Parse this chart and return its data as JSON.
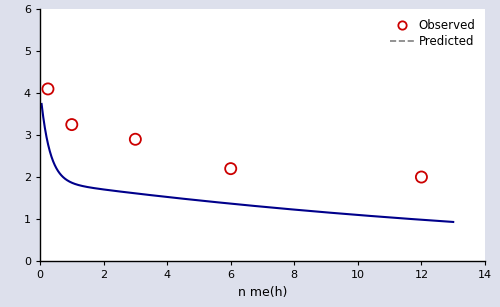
{
  "observed_x": [
    0.25,
    1.0,
    3.0,
    6.0,
    12.0
  ],
  "observed_y": [
    4.1,
    3.25,
    2.9,
    2.2,
    2.0
  ],
  "curve_x_start": 0.05,
  "curve_x_end": 13.0,
  "curve_n_points": 1000,
  "A1": 2.2,
  "k1": 3.5,
  "A2": 1.9,
  "k2": 0.055,
  "xlim": [
    0,
    14
  ],
  "ylim": [
    0,
    6
  ],
  "xticks": [
    0,
    2,
    4,
    6,
    8,
    10,
    12,
    14
  ],
  "yticks": [
    0,
    1,
    2,
    3,
    4,
    5,
    6
  ],
  "xlabel": "n me(h)",
  "ylabel": "",
  "observed_label": "Observed",
  "predicted_label": "Predicted",
  "observed_color": "#cc0000",
  "curve_color": "#00008b",
  "marker_size": 8,
  "marker_linewidth": 1.3,
  "curve_linewidth": 1.5,
  "legend_fontsize": 8.5,
  "axis_label_fontsize": 9,
  "tick_fontsize": 8,
  "plot_bg_color": "#ffffff",
  "fig_bg_color": "#dde0ec"
}
